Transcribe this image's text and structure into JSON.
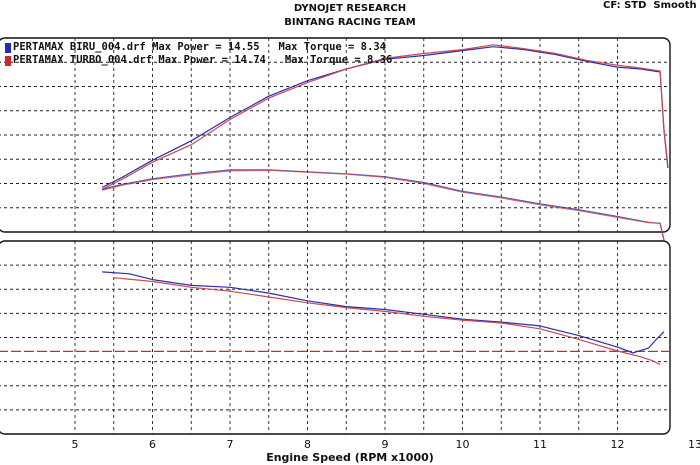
{
  "header": {
    "title": "DYNOJET RESEARCH",
    "subtitle": "BINTANG RACING TEAM",
    "cf_text": "CF: STD  Smooth"
  },
  "legend": [
    {
      "text": "PERTAMAX BIRU_004.drf Max Power = 14.55   Max Torque = 8.34",
      "color": "#1f2fb0"
    },
    {
      "text": "PERTAMAX TURBO_004.drf Max Power = 14.74   Max Torque = 8.36",
      "color": "#cc2a2a"
    }
  ],
  "colors": {
    "biru": "#2a2fa8",
    "turbo": "#c94a55",
    "grid": "#222222",
    "reference_line": "#c03030"
  },
  "chart_data": [
    {
      "type": "line",
      "panel": "top",
      "xlabel": "Engine Speed (RPM x1000)",
      "x_ticks": [
        "5",
        "6",
        "7",
        "8",
        "9",
        "10",
        "11",
        "12",
        "13"
      ],
      "xlim": [
        4.3,
        13.0
      ],
      "ylim": [
        0,
        1
      ],
      "grid": true,
      "legend_position": "top-left",
      "series": [
        {
          "name": "PERTAMAX BIRU_004.drf",
          "metric": "power",
          "x": [
            5.35,
            5.6,
            6.0,
            6.5,
            7.0,
            7.5,
            8.0,
            8.5,
            9.0,
            9.5,
            10.0,
            10.4,
            10.8,
            11.2,
            11.6,
            12.0,
            12.3,
            12.55,
            12.6,
            12.65
          ],
          "y": [
            0.23,
            0.28,
            0.37,
            0.47,
            0.59,
            0.7,
            0.78,
            0.84,
            0.89,
            0.91,
            0.935,
            0.955,
            0.94,
            0.915,
            0.88,
            0.85,
            0.84,
            0.825,
            0.52,
            0.33
          ]
        },
        {
          "name": "PERTAMAX TURBO_004.drf",
          "metric": "power",
          "x": [
            5.35,
            5.6,
            6.0,
            6.5,
            7.0,
            7.5,
            8.0,
            8.5,
            9.0,
            9.5,
            10.0,
            10.4,
            10.8,
            11.2,
            11.6,
            12.0,
            12.3,
            12.55,
            12.6,
            12.65
          ],
          "y": [
            0.22,
            0.27,
            0.36,
            0.45,
            0.58,
            0.69,
            0.77,
            0.84,
            0.895,
            0.92,
            0.94,
            0.965,
            0.945,
            0.92,
            0.885,
            0.86,
            0.845,
            0.83,
            0.53,
            0.34
          ]
        },
        {
          "name": "PERTAMAX BIRU_004.drf",
          "metric": "torque",
          "x": [
            5.35,
            5.6,
            6.0,
            6.5,
            7.0,
            7.5,
            8.0,
            8.5,
            9.0,
            9.5,
            10.0,
            10.5,
            11.0,
            11.5,
            12.0,
            12.4,
            12.55,
            12.6
          ],
          "y": [
            0.22,
            0.245,
            0.275,
            0.3,
            0.32,
            0.32,
            0.31,
            0.3,
            0.285,
            0.255,
            0.21,
            0.18,
            0.145,
            0.115,
            0.08,
            0.05,
            0.045,
            -0.04
          ]
        },
        {
          "name": "PERTAMAX TURBO_004.drf",
          "metric": "torque",
          "x": [
            5.35,
            5.6,
            6.0,
            6.5,
            7.0,
            7.5,
            8.0,
            8.5,
            9.0,
            9.5,
            10.0,
            10.5,
            11.0,
            11.5,
            12.0,
            12.4,
            12.55,
            12.6
          ],
          "y": [
            0.215,
            0.24,
            0.27,
            0.295,
            0.315,
            0.318,
            0.308,
            0.298,
            0.282,
            0.25,
            0.205,
            0.176,
            0.14,
            0.11,
            0.075,
            0.048,
            0.045,
            -0.045
          ]
        }
      ]
    },
    {
      "type": "line",
      "panel": "bottom",
      "xlabel": "Engine Speed (RPM x1000)",
      "x_ticks": [
        "5",
        "6",
        "7",
        "8",
        "9",
        "10",
        "11",
        "12",
        "13"
      ],
      "xlim": [
        4.3,
        13.0
      ],
      "ylim": [
        0,
        1
      ],
      "grid": true,
      "reference_line": 0.428,
      "series": [
        {
          "name": "PERTAMAX BIRU_004.drf",
          "x": [
            5.35,
            5.7,
            6.0,
            6.5,
            7.0,
            7.5,
            8.0,
            8.5,
            9.0,
            9.5,
            10.0,
            10.5,
            11.0,
            11.5,
            12.0,
            12.2,
            12.4,
            12.5,
            12.6
          ],
          "y": [
            0.84,
            0.83,
            0.8,
            0.77,
            0.76,
            0.73,
            0.69,
            0.66,
            0.645,
            0.62,
            0.595,
            0.58,
            0.56,
            0.51,
            0.45,
            0.42,
            0.445,
            0.49,
            0.53
          ]
        },
        {
          "name": "PERTAMAX TURBO_004.drf",
          "x": [
            5.5,
            6.0,
            6.5,
            7.0,
            7.5,
            8.0,
            8.5,
            9.0,
            9.5,
            10.0,
            10.5,
            11.0,
            11.5,
            12.0,
            12.3,
            12.45,
            12.55
          ],
          "y": [
            0.81,
            0.79,
            0.76,
            0.74,
            0.71,
            0.68,
            0.655,
            0.635,
            0.61,
            0.59,
            0.575,
            0.545,
            0.49,
            0.43,
            0.4,
            0.38,
            0.36
          ]
        }
      ]
    }
  ]
}
